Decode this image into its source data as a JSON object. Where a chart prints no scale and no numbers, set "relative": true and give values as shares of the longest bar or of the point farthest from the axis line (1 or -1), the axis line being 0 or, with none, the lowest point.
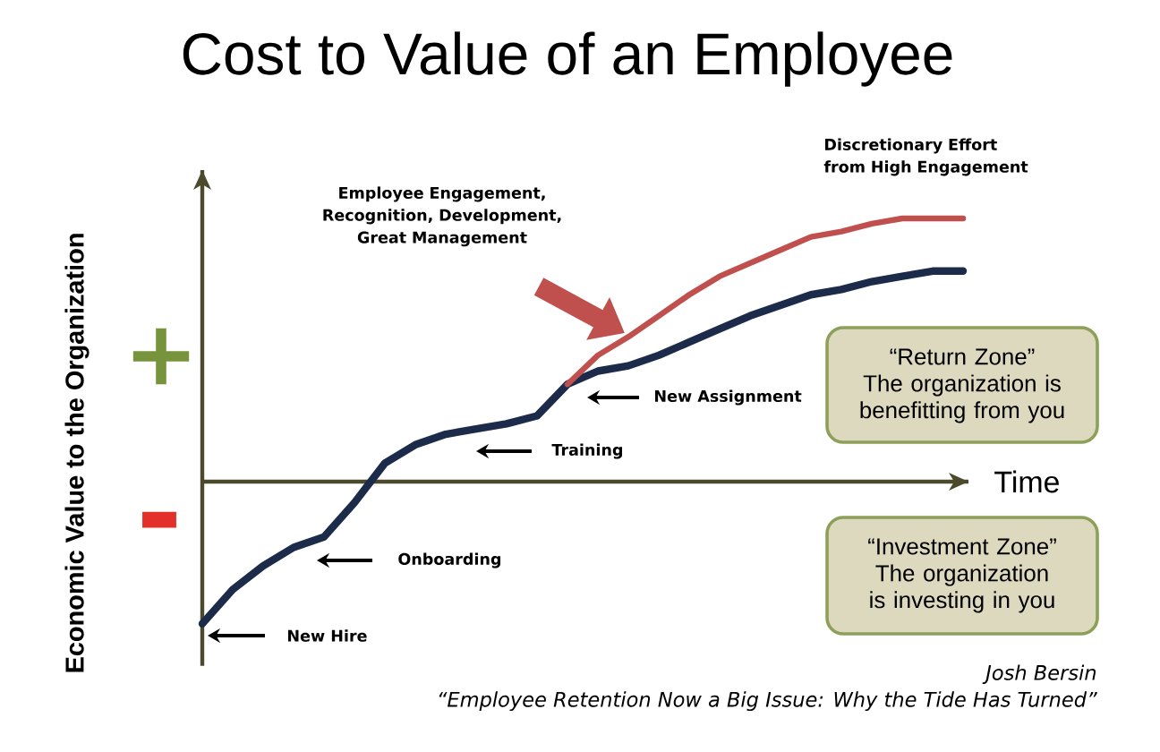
{
  "chart_data": {
    "type": "line",
    "title": "Cost to Value of an Employee",
    "xlabel": "Time",
    "ylabel": "Economic Value to the Organization",
    "relative": true,
    "categories": [
      null,
      null,
      null,
      null,
      null,
      null,
      null,
      null,
      null,
      null,
      null,
      null,
      null,
      null,
      null,
      null,
      null,
      null,
      null,
      null,
      null,
      null,
      null,
      null,
      null,
      null
    ],
    "series": [
      {
        "color": "#1c2b4a",
        "values": [
          -0.54,
          -0.41,
          -0.32,
          -0.25,
          -0.21,
          -0.08,
          0.07,
          0.14,
          0.18,
          0.2,
          0.22,
          0.25,
          0.37,
          0.42,
          0.44,
          0.48,
          0.53,
          0.58,
          0.63,
          0.67,
          0.71,
          0.73,
          0.76,
          0.78,
          0.8,
          0.8
        ]
      },
      {
        "name": "Discretionary Effort from High Engagement",
        "color": "#c0504d",
        "values": [
          null,
          null,
          null,
          null,
          null,
          null,
          null,
          null,
          null,
          null,
          null,
          null,
          0.37,
          0.48,
          0.55,
          0.63,
          0.71,
          0.78,
          0.83,
          0.88,
          0.93,
          0.95,
          0.98,
          1,
          1,
          1
        ]
      }
    ],
    "annotations": [
      "Employee Engagement, Recognition, Development, Great Management",
      "+",
      "New Assignment",
      "Training",
      "-",
      "Onboarding",
      "New Hire",
      "“Return Zone”",
      "The organization is benefitting from you",
      "“Investment Zone”",
      "The organization is investing in you",
      "Josh Bersin",
      "“Employee Retention Now a Big Issue: Why the Tide Has Turned”"
    ]
  }
}
